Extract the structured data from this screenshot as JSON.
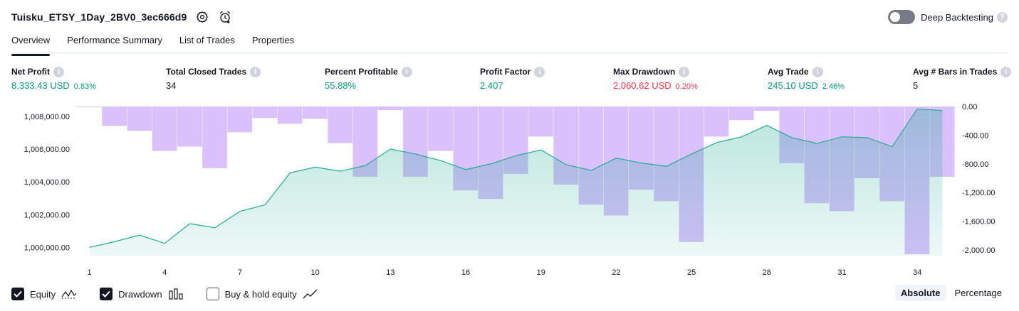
{
  "header": {
    "title": "Tuisku_ETSY_1Day_2BV0_3ec666d9",
    "settings_icon": "gear-icon",
    "alert_icon": "alarm-clock-plus-icon",
    "deep_backtesting_label": "Deep Backtesting",
    "deep_backtesting_enabled": false
  },
  "tabs": [
    {
      "label": "Overview",
      "active": true
    },
    {
      "label": "Performance Summary",
      "active": false
    },
    {
      "label": "List of Trades",
      "active": false
    },
    {
      "label": "Properties",
      "active": false
    }
  ],
  "metrics": [
    {
      "label": "Net Profit",
      "value": "8,333.43 USD",
      "sub": "0.83%",
      "tone": "pos"
    },
    {
      "label": "Total Closed Trades",
      "value": "34",
      "sub": "",
      "tone": "neu"
    },
    {
      "label": "Percent Profitable",
      "value": "55.88%",
      "sub": "",
      "tone": "pos"
    },
    {
      "label": "Profit Factor",
      "value": "2.407",
      "sub": "",
      "tone": "pos"
    },
    {
      "label": "Max Drawdown",
      "value": "2,060.62 USD",
      "sub": "0.20%",
      "tone": "neg"
    },
    {
      "label": "Avg Trade",
      "value": "245.10 USD",
      "sub": "2.46%",
      "tone": "pos"
    },
    {
      "label": "Avg # Bars in Trades",
      "value": "5",
      "sub": "",
      "tone": "neu"
    }
  ],
  "chart_data": {
    "type": "line+bar",
    "equity_color": "#22ab94",
    "drawdown_color": "#c39bfa",
    "x_ticks": [
      "1",
      "4",
      "7",
      "10",
      "13",
      "16",
      "19",
      "22",
      "25",
      "28",
      "31",
      "34"
    ],
    "left_axis": {
      "ticks": [
        "1,000,000.00",
        "1,002,000.00",
        "1,004,000.00",
        "1,006,000.00",
        "1,008,000.00"
      ],
      "range": [
        999500,
        1008600
      ]
    },
    "right_axis": {
      "ticks": [
        "0.00",
        "-400.00",
        "-800.00",
        "-1,200.00",
        "-1,600.00",
        "-2,000.00"
      ],
      "range": [
        -2080,
        0
      ]
    },
    "equity": {
      "name": "Equity",
      "x": [
        1,
        2,
        3,
        4,
        5,
        6,
        7,
        8,
        9,
        10,
        11,
        12,
        13,
        14,
        15,
        16,
        17,
        18,
        19,
        20,
        21,
        22,
        23,
        24,
        25,
        26,
        27,
        28,
        29,
        30,
        31,
        32,
        33,
        34,
        35
      ],
      "values": [
        1000000,
        1000350,
        1000750,
        1000250,
        1001450,
        1001200,
        1002200,
        1002600,
        1004550,
        1004900,
        1004650,
        1005000,
        1006000,
        1005700,
        1005300,
        1004750,
        1005100,
        1005600,
        1005950,
        1005050,
        1004700,
        1005450,
        1005150,
        1004950,
        1005700,
        1006400,
        1006750,
        1007450,
        1006700,
        1006350,
        1006750,
        1006700,
        1006150,
        1008450,
        1008350
      ]
    },
    "drawdown": {
      "name": "Drawdown",
      "x": [
        1,
        2,
        3,
        4,
        5,
        6,
        7,
        8,
        9,
        10,
        11,
        12,
        13,
        14,
        15,
        16,
        17,
        18,
        19,
        20,
        21,
        22,
        23,
        24,
        25,
        26,
        27,
        28,
        29,
        30,
        31,
        32,
        33,
        34,
        35
      ],
      "values": [
        -10,
        -270,
        -340,
        -620,
        -560,
        -860,
        -360,
        -160,
        -240,
        -170,
        -510,
        -980,
        -50,
        -980,
        -620,
        -1170,
        -1290,
        -940,
        -420,
        -1090,
        -1370,
        -1520,
        -1160,
        -1320,
        -1890,
        -420,
        -190,
        -60,
        -790,
        -1350,
        -1460,
        -1000,
        -1320,
        -2060,
        -980
      ]
    }
  },
  "legend": [
    {
      "label": "Equity",
      "checked": true,
      "icon": "equity-line-icon"
    },
    {
      "label": "Drawdown",
      "checked": true,
      "icon": "drawdown-bars-icon"
    },
    {
      "label": "Buy & hold equity",
      "checked": false,
      "icon": "buy-hold-line-icon"
    }
  ],
  "modes": [
    {
      "label": "Absolute",
      "active": true
    },
    {
      "label": "Percentage",
      "active": false
    }
  ]
}
